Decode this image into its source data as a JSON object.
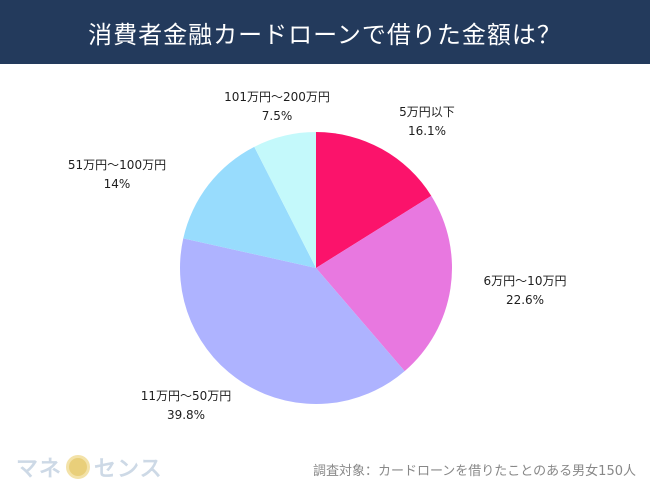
{
  "header": {
    "title": "消費者金融カードローンで借りた金額は？"
  },
  "chart_data": {
    "type": "pie",
    "title": "消費者金融カードローンで借りた金額は？",
    "start": "top",
    "direction": "clockwise",
    "slices": [
      {
        "label": "5万円以下",
        "value": 16.1,
        "value_label": "16.1%",
        "color": "#fb136b"
      },
      {
        "label": "6万円〜10万円",
        "value": 22.6,
        "value_label": "22.6%",
        "color": "#e878e0"
      },
      {
        "label": "11万円〜50万円",
        "value": 39.8,
        "value_label": "39.8%",
        "color": "#aeb3ff"
      },
      {
        "label": "51万円〜100万円",
        "value": 14,
        "value_label": "14%",
        "color": "#98dcfd"
      },
      {
        "label": "101万円〜200万円",
        "value": 7.5,
        "value_label": "7.5%",
        "color": "#c4f9fb"
      }
    ]
  },
  "footer": {
    "brand_part1": "マネ",
    "brand_part2": "センス",
    "note": "調査対象：カードローンを借りたことのある男女150人"
  }
}
